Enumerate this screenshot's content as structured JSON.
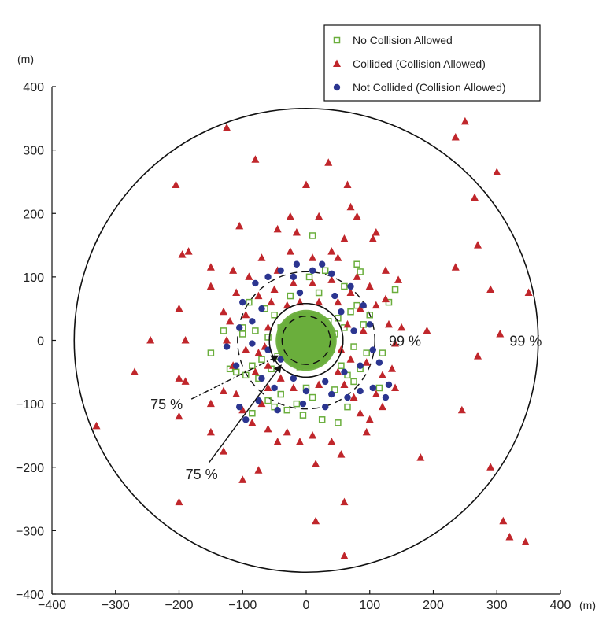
{
  "chart_data": {
    "type": "scatter",
    "title": "",
    "xlabel": "",
    "ylabel": "",
    "x_unit": "(m)",
    "y_unit": "(m)",
    "xlim": [
      -400,
      400
    ],
    "ylim": [
      -400,
      400
    ],
    "xticks": [
      -400,
      -300,
      -200,
      -100,
      0,
      100,
      200,
      300,
      400
    ],
    "yticks": [
      -400,
      -300,
      -200,
      -100,
      0,
      100,
      200,
      300,
      400
    ],
    "grid": false,
    "legend": "top-right",
    "colors": {
      "no_collision": "#6aae3c",
      "collided": "#c0262b",
      "not_collided": "#2b3590"
    },
    "series": [
      {
        "name": "No Collision Allowed",
        "marker": "square-open",
        "color": "#6aae3c",
        "points": [
          [
            -5,
            15
          ],
          [
            10,
            -5
          ],
          [
            20,
            20
          ],
          [
            -15,
            -20
          ],
          [
            30,
            5
          ],
          [
            -30,
            10
          ],
          [
            25,
            -25
          ],
          [
            -20,
            30
          ],
          [
            5,
            -35
          ],
          [
            35,
            30
          ],
          [
            -35,
            -5
          ],
          [
            40,
            -15
          ],
          [
            -40,
            20
          ],
          [
            15,
            40
          ],
          [
            -10,
            -42
          ],
          [
            45,
            10
          ],
          [
            -45,
            -25
          ],
          [
            50,
            35
          ],
          [
            -50,
            40
          ],
          [
            55,
            -40
          ],
          [
            -55,
            -45
          ],
          [
            60,
            20
          ],
          [
            -60,
            5
          ],
          [
            65,
            -55
          ],
          [
            -65,
            50
          ],
          [
            70,
            45
          ],
          [
            -70,
            -30
          ],
          [
            75,
            -10
          ],
          [
            -75,
            -60
          ],
          [
            80,
            55
          ],
          [
            -80,
            15
          ],
          [
            85,
            -45
          ],
          [
            -85,
            -40
          ],
          [
            90,
            25
          ],
          [
            95,
            -20
          ],
          [
            -95,
            -55
          ],
          [
            100,
            40
          ],
          [
            -100,
            10
          ],
          [
            -90,
            60
          ],
          [
            10,
            -90
          ],
          [
            -25,
            70
          ],
          [
            20,
            75
          ],
          [
            45,
            -78
          ],
          [
            -40,
            -85
          ],
          [
            60,
            85
          ],
          [
            -60,
            -95
          ],
          [
            5,
            100
          ],
          [
            -15,
            -100
          ],
          [
            30,
            110
          ],
          [
            65,
            -105
          ],
          [
            80,
            120
          ],
          [
            -150,
            -20
          ],
          [
            -110,
            -50
          ],
          [
            -120,
            -45
          ],
          [
            130,
            60
          ],
          [
            120,
            -20
          ],
          [
            140,
            80
          ],
          [
            -100,
            20
          ],
          [
            -85,
            -115
          ],
          [
            25,
            -125
          ],
          [
            50,
            -130
          ],
          [
            75,
            -65
          ],
          [
            -50,
            -105
          ],
          [
            -30,
            -110
          ],
          [
            -5,
            -118
          ],
          [
            10,
            165
          ],
          [
            85,
            108
          ],
          [
            115,
            -75
          ],
          [
            -130,
            15
          ],
          [
            0,
            -75
          ]
        ]
      },
      {
        "name": "Collided (Collision Allowed)",
        "marker": "triangle",
        "color": "#c0262b",
        "points": [
          [
            -125,
            335
          ],
          [
            250,
            345
          ],
          [
            235,
            320
          ],
          [
            -80,
            285
          ],
          [
            35,
            280
          ],
          [
            300,
            265
          ],
          [
            -205,
            245
          ],
          [
            0,
            245
          ],
          [
            65,
            245
          ],
          [
            265,
            225
          ],
          [
            -25,
            195
          ],
          [
            20,
            195
          ],
          [
            -15,
            170
          ],
          [
            80,
            195
          ],
          [
            70,
            210
          ],
          [
            110,
            170
          ],
          [
            105,
            160
          ],
          [
            -45,
            175
          ],
          [
            -105,
            180
          ],
          [
            -185,
            140
          ],
          [
            -150,
            115
          ],
          [
            -195,
            135
          ],
          [
            270,
            150
          ],
          [
            -115,
            110
          ],
          [
            -45,
            110
          ],
          [
            -25,
            140
          ],
          [
            40,
            140
          ],
          [
            60,
            160
          ],
          [
            125,
            110
          ],
          [
            235,
            115
          ],
          [
            145,
            95
          ],
          [
            125,
            65
          ],
          [
            290,
            80
          ],
          [
            350,
            75
          ],
          [
            -200,
            50
          ],
          [
            -130,
            45
          ],
          [
            -150,
            85
          ],
          [
            -110,
            75
          ],
          [
            110,
            55
          ],
          [
            190,
            15
          ],
          [
            150,
            20
          ],
          [
            305,
            10
          ],
          [
            -245,
            0
          ],
          [
            -190,
            0
          ],
          [
            -125,
            0
          ],
          [
            -95,
            -15
          ],
          [
            -270,
            -50
          ],
          [
            -200,
            -60
          ],
          [
            -190,
            -65
          ],
          [
            -150,
            -100
          ],
          [
            -130,
            -80
          ],
          [
            -85,
            -130
          ],
          [
            120,
            -55
          ],
          [
            135,
            -45
          ],
          [
            140,
            -75
          ],
          [
            120,
            -105
          ],
          [
            270,
            -25
          ],
          [
            245,
            -110
          ],
          [
            -330,
            -135
          ],
          [
            -200,
            -120
          ],
          [
            -150,
            -145
          ],
          [
            -130,
            -175
          ],
          [
            -100,
            -220
          ],
          [
            -75,
            -205
          ],
          [
            -45,
            -160
          ],
          [
            10,
            -150
          ],
          [
            -10,
            -160
          ],
          [
            40,
            -160
          ],
          [
            55,
            -180
          ],
          [
            15,
            -195
          ],
          [
            95,
            -145
          ],
          [
            180,
            -185
          ],
          [
            290,
            -200
          ],
          [
            -200,
            -255
          ],
          [
            15,
            -285
          ],
          [
            60,
            -255
          ],
          [
            310,
            -285
          ],
          [
            320,
            -310
          ],
          [
            345,
            -318
          ],
          [
            60,
            -340
          ],
          [
            -60,
            -140
          ],
          [
            -30,
            -145
          ],
          [
            -100,
            -110
          ],
          [
            -70,
            -100
          ],
          [
            -110,
            -85
          ],
          [
            85,
            -115
          ],
          [
            100,
            -125
          ],
          [
            110,
            -85
          ],
          [
            130,
            25
          ],
          [
            140,
            -5
          ],
          [
            100,
            85
          ],
          [
            80,
            100
          ],
          [
            50,
            130
          ],
          [
            10,
            130
          ],
          [
            -70,
            130
          ],
          [
            -90,
            100
          ],
          [
            -120,
            30
          ],
          [
            -115,
            -40
          ],
          [
            -60,
            -75
          ],
          [
            -20,
            -75
          ],
          [
            20,
            -70
          ],
          [
            60,
            -70
          ],
          [
            75,
            -90
          ],
          [
            -40,
            -60
          ],
          [
            -60,
            -40
          ],
          [
            -80,
            -50
          ],
          [
            -75,
            -20
          ],
          [
            -95,
            40
          ],
          [
            -75,
            70
          ],
          [
            -50,
            80
          ],
          [
            -20,
            90
          ],
          [
            10,
            90
          ],
          [
            40,
            95
          ],
          [
            70,
            75
          ],
          [
            85,
            50
          ],
          [
            90,
            15
          ],
          [
            95,
            -35
          ],
          [
            70,
            -30
          ],
          [
            50,
            -50
          ],
          [
            -30,
            55
          ],
          [
            -55,
            60
          ],
          [
            50,
            60
          ],
          [
            20,
            60
          ],
          [
            -10,
            60
          ],
          [
            -60,
            20
          ],
          [
            -65,
            -10
          ],
          [
            55,
            -15
          ],
          [
            65,
            25
          ]
        ]
      },
      {
        "name": "Not Collided (Collision Allowed)",
        "marker": "circle",
        "color": "#2b3590",
        "points": [
          [
            -15,
            120
          ],
          [
            25,
            120
          ],
          [
            -40,
            110
          ],
          [
            -60,
            100
          ],
          [
            -80,
            90
          ],
          [
            -100,
            60
          ],
          [
            -105,
            20
          ],
          [
            -125,
            -10
          ],
          [
            -110,
            -40
          ],
          [
            -105,
            -105
          ],
          [
            -95,
            -125
          ],
          [
            -75,
            -95
          ],
          [
            -50,
            -75
          ],
          [
            -45,
            -110
          ],
          [
            -5,
            -100
          ],
          [
            30,
            -105
          ],
          [
            40,
            -85
          ],
          [
            65,
            -90
          ],
          [
            85,
            -80
          ],
          [
            105,
            -75
          ],
          [
            125,
            -90
          ],
          [
            130,
            -70
          ],
          [
            115,
            -35
          ],
          [
            105,
            -15
          ],
          [
            100,
            25
          ],
          [
            90,
            55
          ],
          [
            70,
            85
          ],
          [
            40,
            105
          ],
          [
            10,
            110
          ],
          [
            -20,
            100
          ],
          [
            -70,
            50
          ],
          [
            -85,
            30
          ],
          [
            -60,
            -15
          ],
          [
            -70,
            -60
          ],
          [
            60,
            -50
          ],
          [
            75,
            15
          ],
          [
            55,
            45
          ],
          [
            -10,
            75
          ],
          [
            45,
            70
          ],
          [
            -40,
            -30
          ],
          [
            30,
            -65
          ],
          [
            0,
            -80
          ],
          [
            -85,
            -5
          ],
          [
            85,
            -40
          ],
          [
            -20,
            -60
          ]
        ]
      }
    ],
    "circles": [
      {
        "label": "99 %",
        "radius": 365,
        "style": "solid"
      },
      {
        "label": "99 %",
        "radius": 108,
        "style": "dashed"
      },
      {
        "label": "75 %",
        "radius": 58,
        "style": "solid"
      },
      {
        "label": "75 %",
        "radius": 38,
        "style": "dashed"
      }
    ],
    "core_fill_radius": 48,
    "annotations": [
      {
        "text": "99 %",
        "x": 130,
        "y": 0,
        "target_circle": 1
      },
      {
        "text": "99 %",
        "x": 320,
        "y": 0,
        "target_circle": 0
      },
      {
        "text": "75 %",
        "x": -245,
        "y": -100,
        "target_x": -45,
        "target_y": -25,
        "style": "dashdot"
      },
      {
        "text": "75 %",
        "x": -190,
        "y": -210,
        "target_x": -40,
        "target_y": -40,
        "style": "solid"
      }
    ]
  }
}
